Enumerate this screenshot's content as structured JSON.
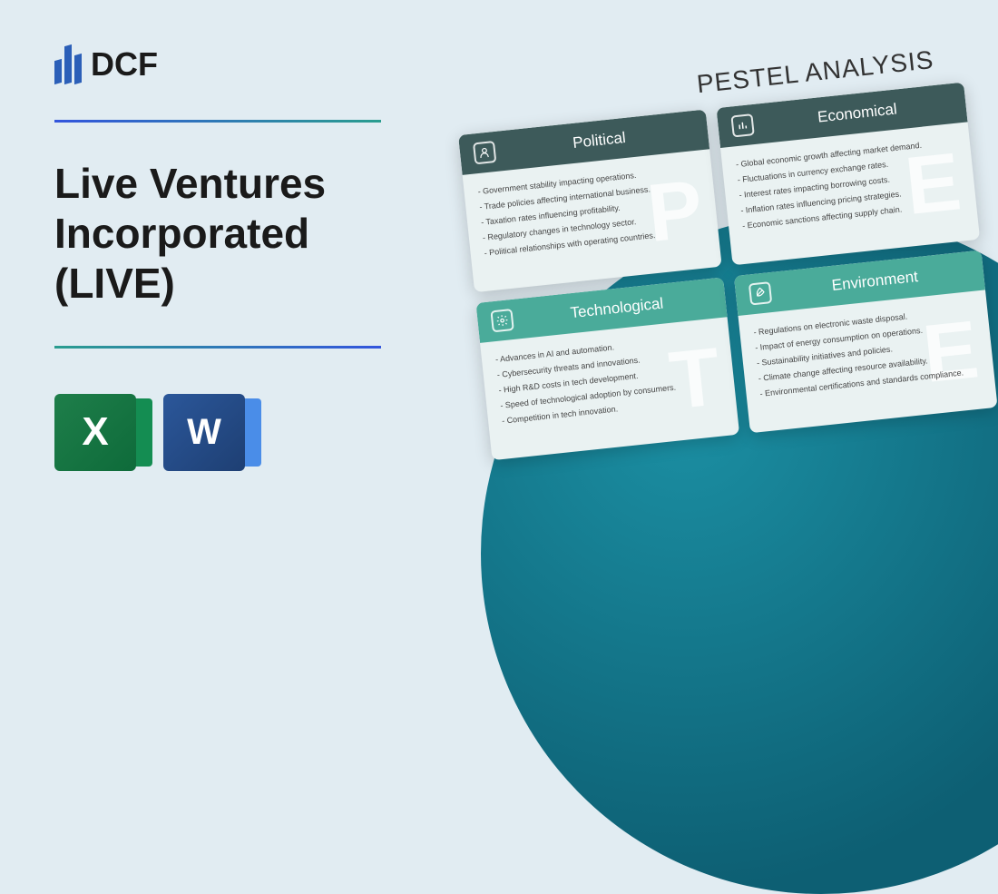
{
  "logo": {
    "text": "DCF"
  },
  "title": "Live Ventures Incorporated (LIVE)",
  "apps": {
    "excel": "X",
    "word": "W"
  },
  "pestel": {
    "heading": "PESTEL ANALYSIS",
    "cards": [
      {
        "title": "Political",
        "header_color": "dark",
        "icon": "user",
        "bg_letter": "P",
        "items": [
          "- Government stability impacting operations.",
          "- Trade policies affecting international business.",
          "- Taxation rates influencing profitability.",
          "- Regulatory changes in technology sector.",
          "- Political relationships with operating countries."
        ]
      },
      {
        "title": "Economical",
        "header_color": "dark",
        "icon": "chart",
        "bg_letter": "E",
        "items": [
          "- Global economic growth affecting market demand.",
          "- Fluctuations in currency exchange rates.",
          "- Interest rates impacting borrowing costs.",
          "- Inflation rates influencing pricing strategies.",
          "- Economic sanctions affecting supply chain."
        ]
      },
      {
        "title": "Technological",
        "header_color": "teal",
        "icon": "gear",
        "bg_letter": "T",
        "items": [
          "- Advances in AI and automation.",
          "- Cybersecurity threats and innovations.",
          "- High R&D costs in tech development.",
          "- Speed of technological adoption by consumers.",
          "- Competition in tech innovation."
        ]
      },
      {
        "title": "Environment",
        "header_color": "teal",
        "icon": "leaf",
        "bg_letter": "E",
        "items": [
          "- Regulations on electronic waste disposal.",
          "- Impact of energy consumption on operations.",
          "- Sustainability initiatives and policies.",
          "- Climate change affecting resource availability.",
          "- Environmental certifications and standards compliance."
        ]
      }
    ]
  },
  "colors": {
    "background": "#e1ecf2",
    "header_dark": "#3d5a5a",
    "header_teal": "#4aab9a",
    "card_bg": "#eaf2f2",
    "circle_gradient_start": "#1b8fa3",
    "circle_gradient_end": "#0d5f73"
  }
}
